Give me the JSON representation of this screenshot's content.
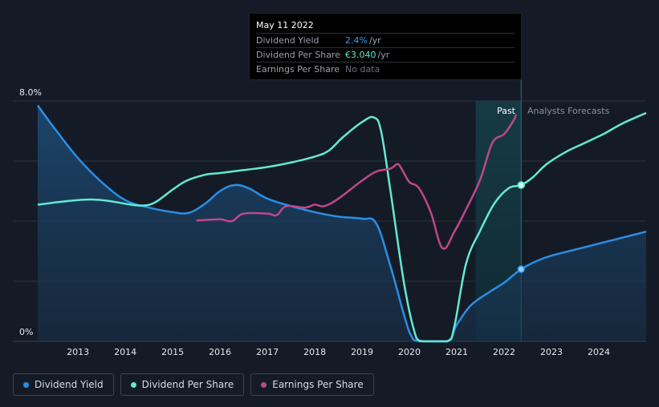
{
  "tooltip": {
    "date": "May 11 2022",
    "rows": [
      {
        "label": "Dividend Yield",
        "value": "2.4%",
        "unit": "/yr"
      },
      {
        "label": "Dividend Per Share",
        "value": "€3.040",
        "unit": "/yr"
      },
      {
        "label": "Earnings Per Share",
        "value": "No data",
        "unit": ""
      }
    ]
  },
  "legend": [
    {
      "label": "Dividend Yield",
      "color": "#2a8ee6"
    },
    {
      "label": "Dividend Per Share",
      "color": "#62e9d2"
    },
    {
      "label": "Earnings Per Share",
      "color": "#c0478a"
    }
  ],
  "chart_data": {
    "type": "line",
    "y_top_label": "8.0%",
    "y_bottom_label": "0%",
    "ylim": [
      0,
      8
    ],
    "xlim": [
      2012.15,
      2025.0
    ],
    "x_ticks": [
      2013,
      2014,
      2015,
      2016,
      2017,
      2018,
      2019,
      2020,
      2021,
      2022,
      2023,
      2024
    ],
    "past_label": "Past",
    "forecast_label": "Analysts Forecasts",
    "past_start": 2021.4,
    "forecast_start": 2022.36,
    "colors": {
      "yield": "#2a8ee6",
      "dps": "#62e9d2",
      "eps": "#c0478a"
    },
    "series": [
      {
        "name": "Dividend Yield",
        "values": [
          [
            2012.15,
            7.85
          ],
          [
            2012.5,
            7.1
          ],
          [
            2013.0,
            6.1
          ],
          [
            2013.5,
            5.3
          ],
          [
            2014.0,
            4.7
          ],
          [
            2014.5,
            4.45
          ],
          [
            2015.0,
            4.3
          ],
          [
            2015.35,
            4.28
          ],
          [
            2015.7,
            4.6
          ],
          [
            2016.0,
            5.0
          ],
          [
            2016.3,
            5.2
          ],
          [
            2016.6,
            5.1
          ],
          [
            2017.0,
            4.75
          ],
          [
            2017.5,
            4.5
          ],
          [
            2018.0,
            4.3
          ],
          [
            2018.5,
            4.15
          ],
          [
            2019.0,
            4.08
          ],
          [
            2019.3,
            3.92
          ],
          [
            2019.6,
            2.5
          ],
          [
            2020.0,
            0.3
          ],
          [
            2020.2,
            0.0
          ],
          [
            2020.8,
            0.0
          ],
          [
            2021.0,
            0.55
          ],
          [
            2021.3,
            1.2
          ],
          [
            2021.7,
            1.65
          ],
          [
            2022.0,
            1.95
          ],
          [
            2022.36,
            2.4
          ],
          [
            2022.7,
            2.68
          ],
          [
            2023.0,
            2.85
          ],
          [
            2023.5,
            3.05
          ],
          [
            2024.0,
            3.25
          ],
          [
            2024.5,
            3.45
          ],
          [
            2025.0,
            3.65
          ]
        ]
      },
      {
        "name": "Dividend Per Share",
        "values": [
          [
            2012.15,
            4.55
          ],
          [
            2013.0,
            4.7
          ],
          [
            2013.5,
            4.7
          ],
          [
            2014.0,
            4.58
          ],
          [
            2014.3,
            4.52
          ],
          [
            2014.6,
            4.6
          ],
          [
            2015.0,
            5.05
          ],
          [
            2015.3,
            5.35
          ],
          [
            2015.7,
            5.55
          ],
          [
            2016.0,
            5.6
          ],
          [
            2016.5,
            5.7
          ],
          [
            2017.0,
            5.8
          ],
          [
            2017.5,
            5.95
          ],
          [
            2018.0,
            6.15
          ],
          [
            2018.3,
            6.35
          ],
          [
            2018.6,
            6.8
          ],
          [
            2019.0,
            7.3
          ],
          [
            2019.25,
            7.45
          ],
          [
            2019.4,
            7.0
          ],
          [
            2019.6,
            5.0
          ],
          [
            2019.9,
            1.8
          ],
          [
            2020.15,
            0.1
          ],
          [
            2020.3,
            0.0
          ],
          [
            2020.8,
            0.0
          ],
          [
            2020.95,
            0.5
          ],
          [
            2021.2,
            2.6
          ],
          [
            2021.5,
            3.7
          ],
          [
            2021.8,
            4.6
          ],
          [
            2022.1,
            5.1
          ],
          [
            2022.36,
            5.2
          ],
          [
            2022.6,
            5.45
          ],
          [
            2022.9,
            5.9
          ],
          [
            2023.3,
            6.3
          ],
          [
            2023.7,
            6.6
          ],
          [
            2024.1,
            6.9
          ],
          [
            2024.5,
            7.25
          ],
          [
            2025.0,
            7.6
          ]
        ]
      },
      {
        "name": "Earnings Per Share",
        "values": [
          [
            2015.5,
            4.02
          ],
          [
            2016.0,
            4.06
          ],
          [
            2016.25,
            4.0
          ],
          [
            2016.5,
            4.25
          ],
          [
            2017.0,
            4.25
          ],
          [
            2017.2,
            4.2
          ],
          [
            2017.4,
            4.5
          ],
          [
            2017.8,
            4.45
          ],
          [
            2018.0,
            4.55
          ],
          [
            2018.2,
            4.5
          ],
          [
            2018.5,
            4.75
          ],
          [
            2019.0,
            5.35
          ],
          [
            2019.3,
            5.65
          ],
          [
            2019.6,
            5.75
          ],
          [
            2019.75,
            5.9
          ],
          [
            2019.85,
            5.7
          ],
          [
            2020.0,
            5.3
          ],
          [
            2020.2,
            5.1
          ],
          [
            2020.45,
            4.3
          ],
          [
            2020.7,
            3.1
          ],
          [
            2020.95,
            3.65
          ],
          [
            2021.2,
            4.4
          ],
          [
            2021.5,
            5.4
          ],
          [
            2021.75,
            6.6
          ],
          [
            2022.0,
            6.9
          ],
          [
            2022.2,
            7.35
          ],
          [
            2022.25,
            7.55
          ]
        ]
      }
    ],
    "markers": [
      {
        "series": "Dividend Per Share",
        "x": 2022.36,
        "y": 5.2
      },
      {
        "series": "Dividend Yield",
        "x": 2022.36,
        "y": 2.4
      }
    ]
  }
}
